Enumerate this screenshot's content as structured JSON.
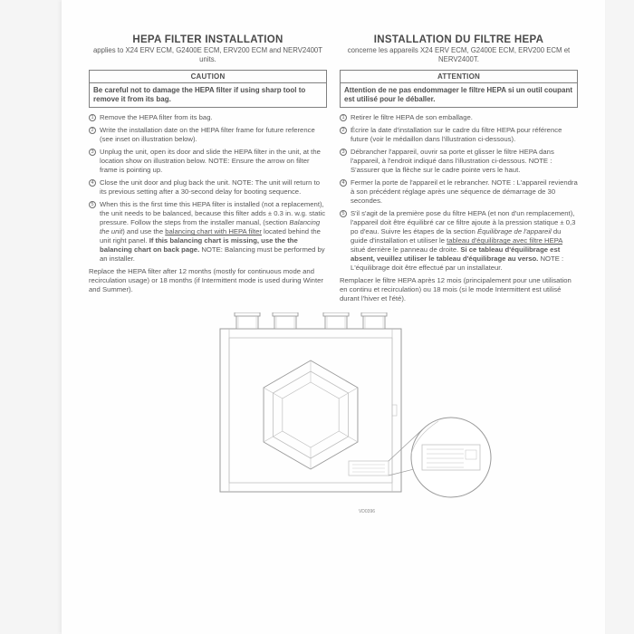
{
  "en": {
    "title": "HEPA FILTER INSTALLATION",
    "subtitle": "applies to X24 ERV ECM, G2400E ECM, ERV200 ECM and NERV2400T units.",
    "caution_head": "CAUTION",
    "caution_body": "Be careful not to damage the HEPA filter if using sharp tool to remove it from its bag.",
    "steps": [
      "Remove the HEPA filter from its bag.",
      "Write the installation date on the HEPA filter frame for future reference (see inset on illustration below).",
      "Unplug the unit, open its door and slide the HEPA filter in the unit, at the location show on illustration below. NOTE: Ensure the arrow on filter frame is pointing up.",
      "Close the unit door and plug back the unit. NOTE: The unit will return to its previous setting after a 30-second delay for booting sequence.",
      "When this is the first time this HEPA filter is installed (not a replacement), the unit needs to be balanced, because this filter adds ± 0.3 in. w.g. static pressure. Follow the steps from the installer manual, (section <i>Balancing the unit</i>) and use the <u>balancing chart with HEPA filter</u> located behind the unit right panel. <b>If this balancing chart is missing, use the the balancing chart on back page.</b> NOTE: Balancing must be performed by an installer."
    ],
    "footer": "Replace the HEPA filter after 12 months (mostly for continuous mode and recirculation usage) or 18 months (if Intermittent mode is used during Winter and Summer)."
  },
  "fr": {
    "title": "INSTALLATION DU FILTRE HEPA",
    "subtitle": "concerne les appareils X24 ERV ECM, G2400E ECM, ERV200 ECM et NERV2400T.",
    "caution_head": "ATTENTION",
    "caution_body": "Attention de ne pas endommager le filtre HEPA si un outil coupant est utilisé pour le déballer.",
    "steps": [
      "Retirer le filtre HEPA de son emballage.",
      "Écrire la date d'installation sur le cadre du filtre HEPA pour référence future (voir le médaillon dans l'illustration ci-dessous).",
      "Débrancher l'appareil, ouvrir sa porte et glisser le filtre HEPA dans l'appareil, à l'endroit indiqué dans l'illustration ci-dessous. NOTE : S'assurer que la flèche sur le cadre pointe vers le haut.",
      "Fermer la porte de l'appareil et le rebrancher. NOTE : L'appareil reviendra à son précédent réglage après une séquence de démarrage de 30 secondes.",
      "S'il s'agit de la première pose du filtre HEPA (et non d'un remplacement), l'appareil doit être équilibré car ce filtre ajoute à la pression statique ± 0,3 po d'eau. Suivre les étapes de la section <i>Équilibrage de l'appareil</i> du guide d'installation et utiliser le <u>tableau d'équilibrage avec filtre HEPA</u> situé derrière le panneau de droite. <b>Si ce tableau d'équilibrage est absent, veuillez utiliser le tableau d'équilibrage au verso.</b> NOTE : L'équilibrage doit être effectué par un installateur."
    ],
    "footer": "Remplacer le filtre HEPA après 12 mois (principalement pour une utilisation en continu et recirculation) ou 18 mois (si le mode Intermittent est utilisé durant l'hiver et l'été)."
  },
  "diagram": {
    "code": "VD0396",
    "stroke": "#9a9a9a",
    "stroke_light": "#c0c0c0",
    "fill": "#ffffff"
  }
}
